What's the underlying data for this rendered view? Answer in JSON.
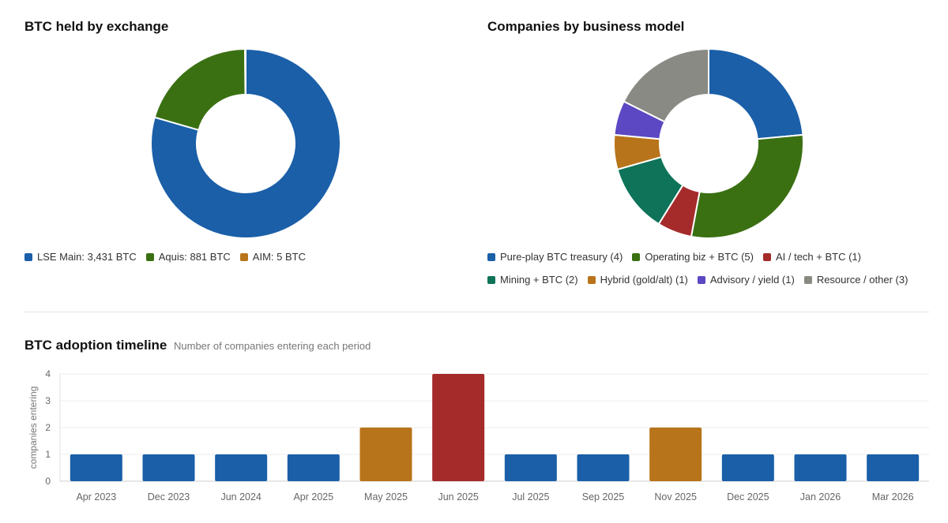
{
  "chart_data": [
    {
      "type": "pie",
      "title": "BTC held by exchange",
      "slices": [
        {
          "label": "LSE Main",
          "value": 3431,
          "color": "#1a5fa8",
          "legend": "LSE Main: 3,431 BTC"
        },
        {
          "label": "Aquis",
          "value": 881,
          "color": "#3a7012",
          "legend": "Aquis: 881 BTC"
        },
        {
          "label": "AIM",
          "value": 5,
          "color": "#b8741a",
          "legend": "AIM: 5 BTC"
        }
      ]
    },
    {
      "type": "pie",
      "title": "Companies by business model",
      "slices": [
        {
          "label": "Pure-play BTC treasury",
          "value": 4,
          "color": "#1a5fa8",
          "legend": "Pure-play BTC treasury (4)"
        },
        {
          "label": "Operating biz + BTC",
          "value": 5,
          "color": "#3a7012",
          "legend": "Operating biz + BTC (5)"
        },
        {
          "label": "AI / tech + BTC",
          "value": 1,
          "color": "#a52a2a",
          "legend": "AI / tech + BTC (1)"
        },
        {
          "label": "Mining + BTC",
          "value": 2,
          "color": "#0e7358",
          "legend": "Mining + BTC (2)"
        },
        {
          "label": "Hybrid (gold/alt)",
          "value": 1,
          "color": "#b8741a",
          "legend": "Hybrid (gold/alt) (1)"
        },
        {
          "label": "Advisory / yield",
          "value": 1,
          "color": "#5b48c2",
          "legend": "Advisory / yield (1)"
        },
        {
          "label": "Resource / other",
          "value": 3,
          "color": "#8a8a84",
          "legend": "Resource / other (3)"
        }
      ]
    },
    {
      "type": "bar",
      "title": "BTC adoption timeline",
      "subtitle": "Number of companies entering each period",
      "ylabel": "companies entering",
      "xlabel": "",
      "ylim": [
        0,
        4
      ],
      "yticks": [
        "0",
        "1",
        "2",
        "3",
        "4"
      ],
      "grid": true,
      "categories": [
        "Apr 2023",
        "Dec 2023",
        "Jun 2024",
        "Apr 2025",
        "May 2025",
        "Jun 2025",
        "Jul 2025",
        "Sep 2025",
        "Nov 2025",
        "Dec 2025",
        "Jan 2026",
        "Mar 2026"
      ],
      "values": [
        1,
        1,
        1,
        1,
        2,
        4,
        1,
        1,
        2,
        1,
        1,
        1
      ],
      "colors": [
        "#1a5fa8",
        "#1a5fa8",
        "#1a5fa8",
        "#1a5fa8",
        "#b8741a",
        "#a52a2a",
        "#1a5fa8",
        "#1a5fa8",
        "#b8741a",
        "#1a5fa8",
        "#1a5fa8",
        "#1a5fa8"
      ]
    }
  ]
}
